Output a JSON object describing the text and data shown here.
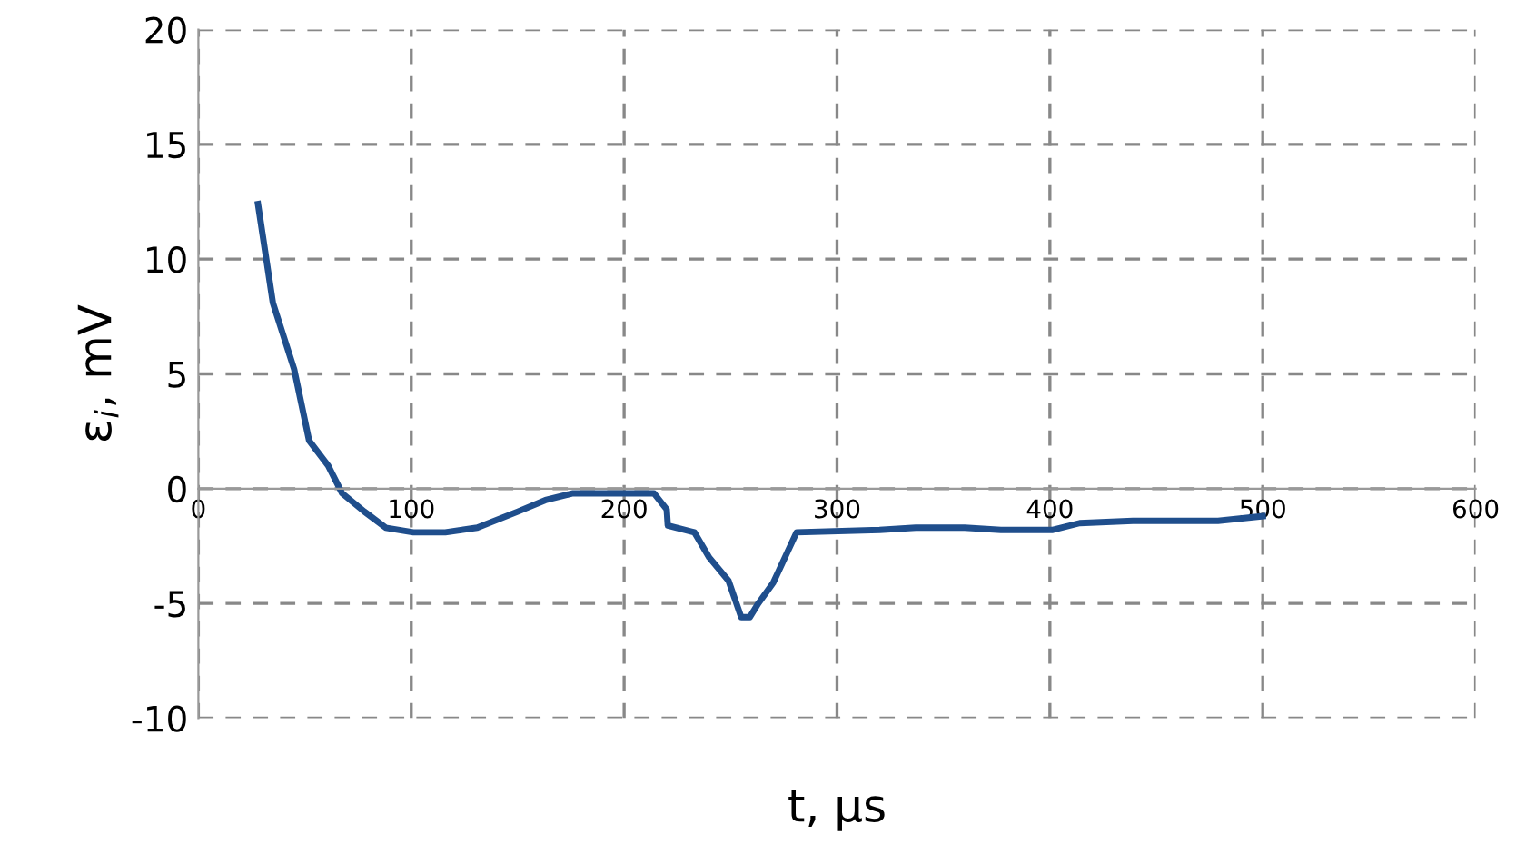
{
  "chart_data": {
    "type": "line",
    "xlabel": "t, µs",
    "ylabel": "ε$_{i}$, mV",
    "xlim": [
      0,
      600
    ],
    "xticks": [
      0,
      100,
      200,
      300,
      400,
      500,
      600
    ],
    "ylim": [
      -10,
      20
    ],
    "yticks": [
      -10,
      -5,
      0,
      5,
      10,
      15,
      20
    ],
    "grid": true,
    "line_style": "solid",
    "marker": "none",
    "series": [
      {
        "color": "#1f4e8c",
        "x": [
          28,
          35,
          45,
          52,
          61,
          67.5,
          78,
          88,
          101,
          116,
          131,
          150,
          163,
          176,
          214,
          220,
          220.5,
          233,
          240,
          249,
          255,
          259,
          263,
          270,
          281,
          320,
          337,
          360,
          377,
          401,
          414,
          439,
          479,
          500
        ],
        "values": [
          12.4,
          8.1,
          5.2,
          2.1,
          1.0,
          -0.2,
          -1.0,
          -1.7,
          -1.9,
          -1.9,
          -1.7,
          -1.0,
          -0.5,
          -0.2,
          -0.2,
          -0.9,
          -1.6,
          -1.9,
          -3.0,
          -4.0,
          -5.6,
          -5.6,
          -5.0,
          -4.1,
          -1.9,
          -1.8,
          -1.7,
          -1.7,
          -1.8,
          -1.8,
          -1.5,
          -1.4,
          -1.4,
          -1.2
        ]
      }
    ]
  }
}
